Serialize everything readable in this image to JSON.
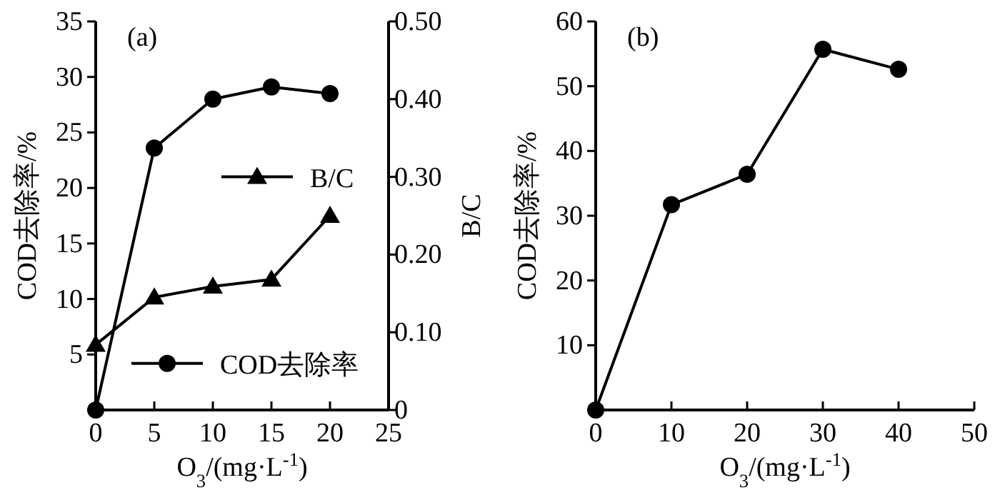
{
  "chart_data": [
    {
      "type": "line",
      "xlabel": "O$_{3}$/(mg·L$^{-1}$)",
      "ylabel": "COD去除率/%",
      "y2label": "B/C",
      "annotations": [
        "(a)"
      ],
      "x": [
        0,
        5,
        10,
        15,
        20
      ],
      "xlim": [
        0,
        25
      ],
      "xticks": [
        0,
        5,
        10,
        15,
        20,
        25
      ],
      "ylim": [
        0,
        35
      ],
      "yticks": [
        5,
        10,
        15,
        20,
        25,
        30,
        35
      ],
      "y2lim": [
        0,
        0.5
      ],
      "y2ticks": [
        {
          "value": 0,
          "label": "0"
        },
        {
          "value": 0.1,
          "label": "0.10"
        },
        {
          "value": 0.2,
          "label": "0.20"
        },
        {
          "value": 0.3,
          "label": "0.30"
        },
        {
          "value": 0.4,
          "label": "0.40"
        },
        {
          "value": 0.5,
          "label": "0.50"
        }
      ],
      "legend": "right",
      "grid": false,
      "line_style": "solid",
      "series": [
        {
          "name": "B/C",
          "color": "#000000",
          "axis": "y2",
          "marker": "triangle",
          "values": [
            0.084,
            0.145,
            0.159,
            0.168,
            0.25
          ]
        },
        {
          "name": "COD去除率",
          "color": "#000000",
          "marker": "circle",
          "values": [
            0,
            23.6,
            28,
            29.1,
            28.5
          ]
        }
      ]
    },
    {
      "type": "line",
      "xlabel": "O$_{3}$/(mg·L$^{-1}$)",
      "ylabel": "COD去除率/%",
      "annotations": [
        "(b)"
      ],
      "x": [
        0,
        10,
        20,
        30,
        40
      ],
      "xlim": [
        0,
        50
      ],
      "xticks": [
        0,
        10,
        20,
        30,
        40,
        50
      ],
      "ylim": [
        0,
        60
      ],
      "yticks": [
        10,
        20,
        30,
        40,
        50,
        60
      ],
      "grid": false,
      "line_style": "solid",
      "series": [
        {
          "color": "#000000",
          "marker": "circle",
          "values": [
            0,
            31.7,
            36.4,
            55.7,
            52.6
          ]
        }
      ]
    }
  ]
}
